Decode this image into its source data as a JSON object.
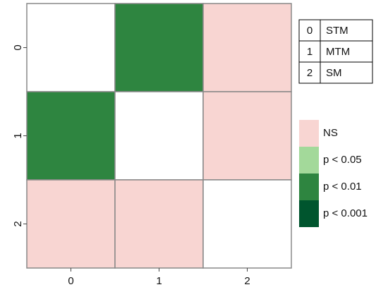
{
  "chart_data": {
    "type": "heatmap",
    "x_categories": [
      "0",
      "1",
      "2"
    ],
    "y_categories": [
      "0",
      "1",
      "2"
    ],
    "cells": [
      [
        null,
        "p < 0.01",
        "NS"
      ],
      [
        "p < 0.01",
        null,
        "NS"
      ],
      [
        "NS",
        "NS",
        null
      ]
    ],
    "legend": [
      {
        "name": "NS",
        "color": "#f8d5d2"
      },
      {
        "name": "p < 0.05",
        "color": "#a3d99a"
      },
      {
        "name": "p < 0.01",
        "color": "#2e8540"
      },
      {
        "name": "p < 0.001",
        "color": "#00552e"
      }
    ],
    "key_table": [
      [
        "0",
        "STM"
      ],
      [
        "1",
        "MTM"
      ],
      [
        "2",
        "SM"
      ]
    ]
  }
}
